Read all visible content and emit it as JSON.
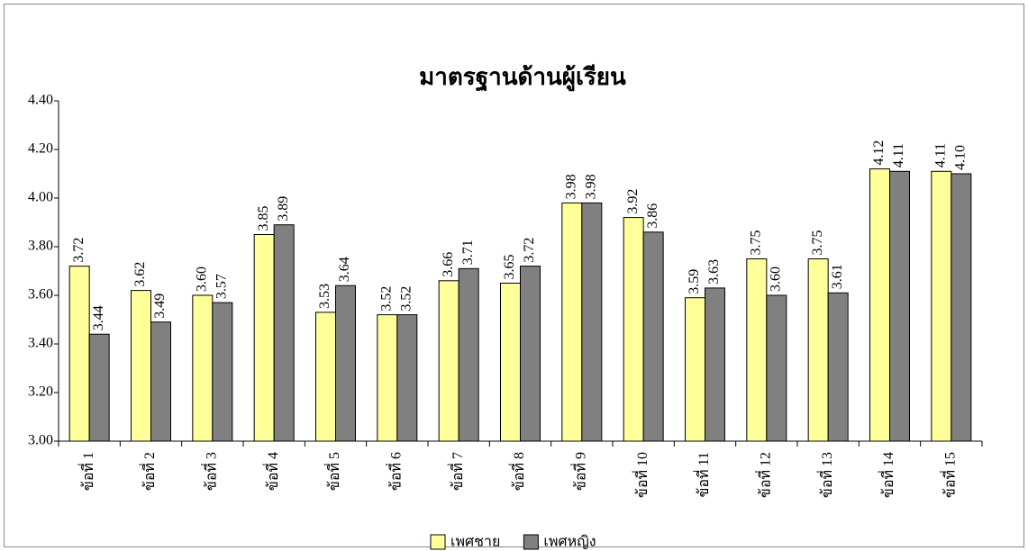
{
  "chart_data": {
    "type": "bar",
    "title": "มาตรฐานด้านผู้เรียน",
    "categories": [
      "ข้อที่ 1",
      "ข้อที่ 2",
      "ข้อที่ 3",
      "ข้อที่ 4",
      "ข้อที่ 5",
      "ข้อที่ 6",
      "ข้อที่ 7",
      "ข้อที่ 8",
      "ข้อที่ 9",
      "ข้อที่ 10",
      "ข้อที่ 11",
      "ข้อที่ 12",
      "ข้อที่ 13",
      "ข้อที่ 14",
      "ข้อที่ 15"
    ],
    "series": [
      {
        "name": "เพศชาย",
        "color": "#ffff99",
        "values": [
          3.72,
          3.62,
          3.6,
          3.85,
          3.53,
          3.52,
          3.66,
          3.65,
          3.98,
          3.92,
          3.59,
          3.75,
          3.75,
          4.12,
          4.11
        ],
        "value_labels": [
          "3.72",
          "3.62",
          "3.60",
          "3.85",
          "3.53",
          "3.52",
          "3.66",
          "3.65",
          "3.98",
          "3.92",
          "3.59",
          "3.75",
          "3.75",
          "4.12",
          "4.11"
        ]
      },
      {
        "name": "เพศหญิง",
        "color": "#808080",
        "values": [
          3.44,
          3.49,
          3.57,
          3.89,
          3.64,
          3.52,
          3.71,
          3.72,
          3.98,
          3.86,
          3.63,
          3.6,
          3.61,
          4.11,
          4.1
        ],
        "value_labels": [
          "3.44",
          "3.49",
          "3.57",
          "3.89",
          "3.64",
          "3.52",
          "3.71",
          "3.72",
          "3.98",
          "3.86",
          "3.63",
          "3.60",
          "3.61",
          "4.11",
          "4.10"
        ]
      }
    ],
    "ylim": [
      3,
      4.4
    ],
    "yticks": [
      {
        "value": 3,
        "label": "3.00"
      },
      {
        "value": 3.2,
        "label": "3.20"
      },
      {
        "value": 3.4,
        "label": "3.40"
      },
      {
        "value": 3.6,
        "label": "3.60"
      },
      {
        "value": 3.8,
        "label": "3.80"
      },
      {
        "value": 4,
        "label": "4.00"
      },
      {
        "value": 4.2,
        "label": "4.20"
      },
      {
        "value": 4.4,
        "label": "4.40"
      }
    ],
    "grid": false,
    "legend": "bottom"
  }
}
